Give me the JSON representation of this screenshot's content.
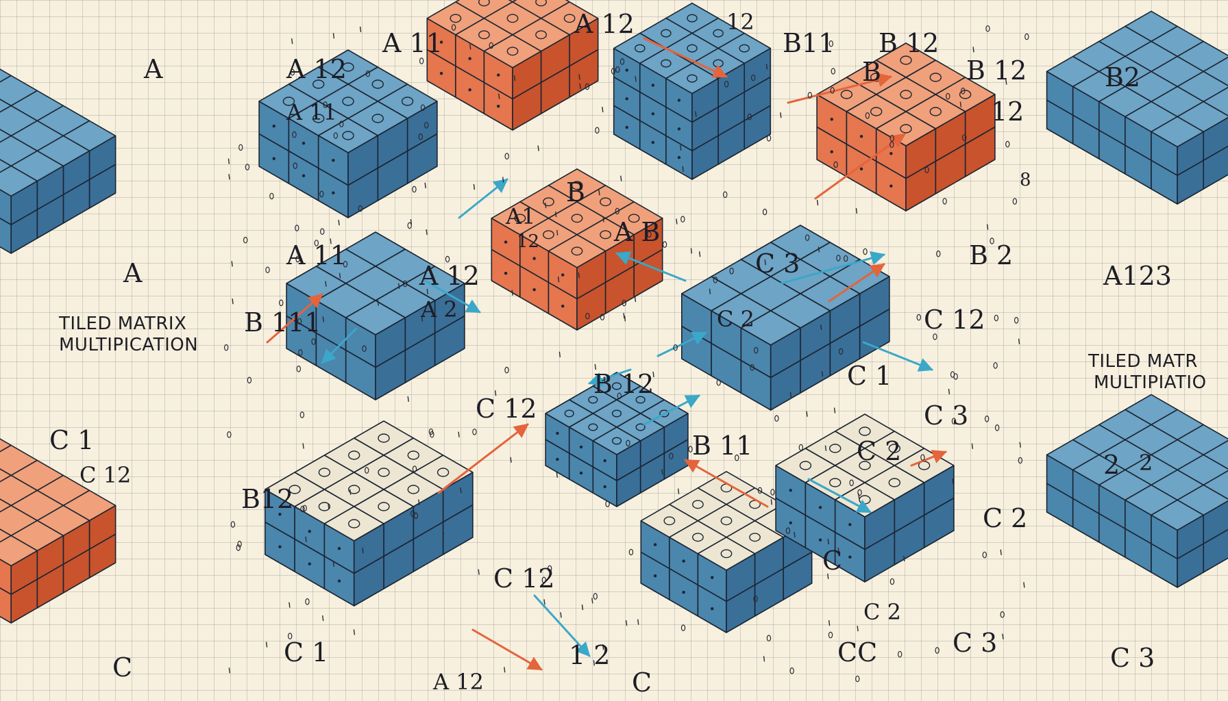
{
  "colors": {
    "paper": "#f7f0de",
    "blue_top": "#6ea4c5",
    "blue_left": "#4b86ad",
    "blue_right": "#3a6f98",
    "orange_top": "#f0a07a",
    "orange_left": "#e5764e",
    "orange_right": "#c8532d",
    "cream_top": "#ede6d2",
    "ink": "#1d1d26",
    "arrow_red": "#e4643c",
    "arrow_blue": "#3ba7c9"
  },
  "titles": {
    "left_line1": "TILED MATRIX",
    "left_line2": "MULTIPICATION",
    "right_line1": "TILED MATR",
    "right_line2": "MULTIPIATIO"
  },
  "labels": [
    "A",
    "A",
    "A 12",
    "A 11",
    "A 11",
    "A 12",
    "A 11",
    "A 2",
    "A 12",
    "A1",
    "12",
    "A  B",
    "B",
    "B11",
    "B 12",
    "B",
    "B 12",
    "12",
    "B 2",
    "C 3",
    "C 2",
    "C 12",
    "C 3",
    "C 2",
    "B 12",
    "B 11",
    "B 111",
    "B12",
    "C 12",
    "C 1",
    "C 12",
    "C",
    "C 1",
    "C 12",
    "1 2",
    "C",
    "CC",
    "C 3",
    "C 2",
    "A 12",
    "C 1",
    "C",
    "B2",
    "A123",
    "C 3",
    "2",
    "12",
    "8",
    "C 2",
    "2"
  ]
}
